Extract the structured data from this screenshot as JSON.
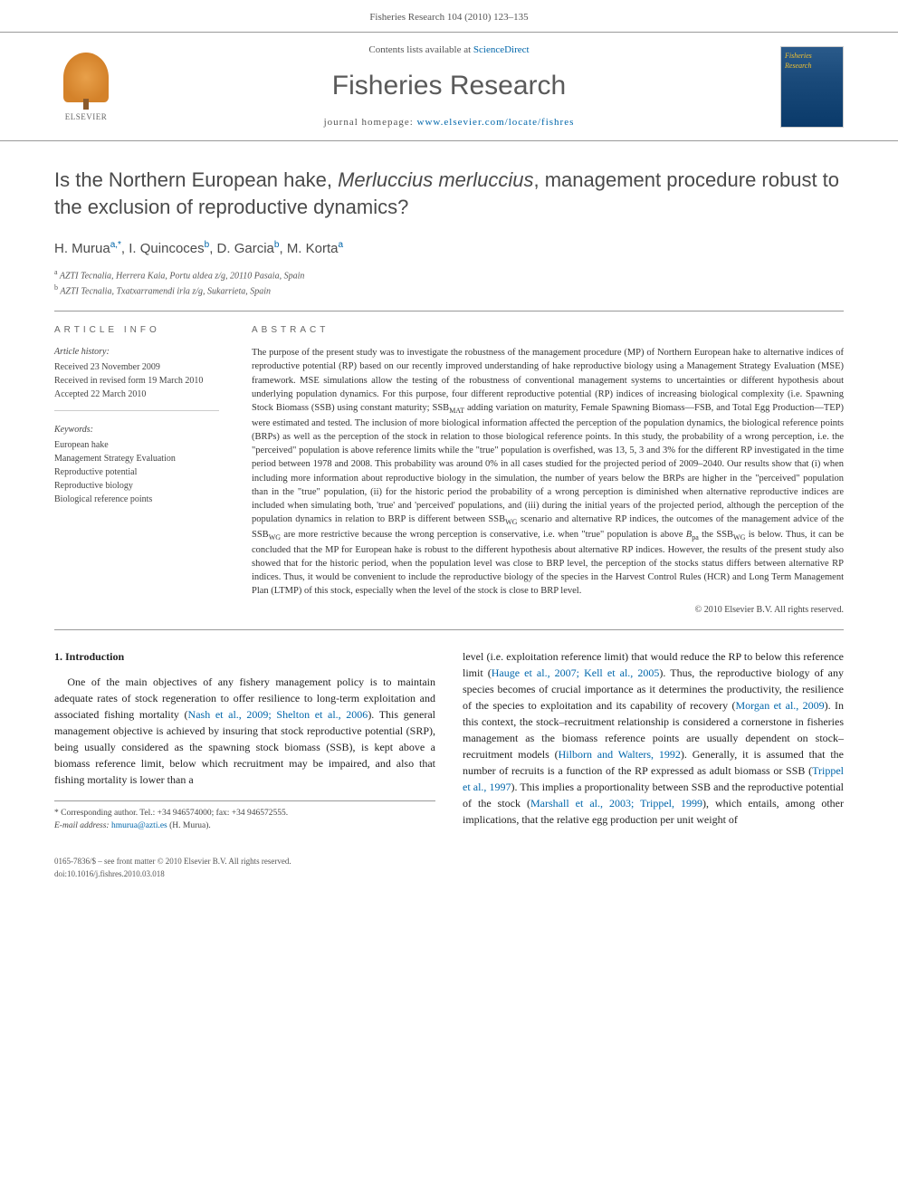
{
  "header": {
    "citation": "Fisheries Research 104 (2010) 123–135"
  },
  "masthead": {
    "publisher_label": "ELSEVIER",
    "contents_prefix": "Contents lists available at ",
    "contents_link": "ScienceDirect",
    "journal_name": "Fisheries Research",
    "homepage_prefix": "journal homepage: ",
    "homepage_url": "www.elsevier.com/locate/fishres",
    "cover_title": "Fisheries Research"
  },
  "title": {
    "prefix": "Is the Northern European hake, ",
    "species": "Merluccius merluccius",
    "suffix": ", management procedure robust to the exclusion of reproductive dynamics?"
  },
  "authors": [
    {
      "name": "H. Murua",
      "aff": "a,*"
    },
    {
      "name": "I. Quincoces",
      "aff": "b"
    },
    {
      "name": "D. Garcia",
      "aff": "b"
    },
    {
      "name": "M. Korta",
      "aff": "a"
    }
  ],
  "affiliations": [
    {
      "mark": "a",
      "text": "AZTI Tecnalia, Herrera Kaia, Portu aldea z/g, 20110 Pasaia, Spain"
    },
    {
      "mark": "b",
      "text": "AZTI Tecnalia, Txatxarramendi irla z/g, Sukarrieta, Spain"
    }
  ],
  "article_info": {
    "heading": "ARTICLE INFO",
    "history_label": "Article history:",
    "history": [
      "Received 23 November 2009",
      "Received in revised form 19 March 2010",
      "Accepted 22 March 2010"
    ],
    "keywords_label": "Keywords:",
    "keywords": [
      "European hake",
      "Management Strategy Evaluation",
      "Reproductive potential",
      "Reproductive biology",
      "Biological reference points"
    ]
  },
  "abstract": {
    "heading": "ABSTRACT",
    "text": "The purpose of the present study was to investigate the robustness of the management procedure (MP) of Northern European hake to alternative indices of reproductive potential (RP) based on our recently improved understanding of hake reproductive biology using a Management Strategy Evaluation (MSE) framework. MSE simulations allow the testing of the robustness of conventional management systems to uncertainties or different hypothesis about underlying population dynamics. For this purpose, four different reproductive potential (RP) indices of increasing biological complexity (i.e. Spawning Stock Biomass (SSB) using constant maturity; SSBMAT adding variation on maturity, Female Spawning Biomass—FSB, and Total Egg Production—TEP) were estimated and tested. The inclusion of more biological information affected the perception of the population dynamics, the biological reference points (BRPs) as well as the perception of the stock in relation to those biological reference points. In this study, the probability of a wrong perception, i.e. the \"perceived\" population is above reference limits while the \"true\" population is overfished, was 13, 5, 3 and 3% for the different RP investigated in the time period between 1978 and 2008. This probability was around 0% in all cases studied for the projected period of 2009–2040. Our results show that (i) when including more information about reproductive biology in the simulation, the number of years below the BRPs are higher in the \"perceived\" population than in the \"true\" population, (ii) for the historic period the probability of a wrong perception is diminished when alternative reproductive indices are included when simulating both, 'true' and 'perceived' populations, and (iii) during the initial years of the projected period, although the perception of the population dynamics in relation to BRP is different between SSBWG scenario and alternative RP indices, the outcomes of the management advice of the SSBWG are more restrictive because the wrong perception is conservative, i.e. when \"true\" population is above Bpa the SSBWG is below. Thus, it can be concluded that the MP for European hake is robust to the different hypothesis about alternative RP indices. However, the results of the present study also showed that for the historic period, when the population level was close to BRP level, the perception of the stocks status differs between alternative RP indices. Thus, it would be convenient to include the reproductive biology of the species in the Harvest Control Rules (HCR) and Long Term Management Plan (LTMP) of this stock, especially when the level of the stock is close to BRP level.",
    "copyright": "© 2010 Elsevier B.V. All rights reserved."
  },
  "body": {
    "section_heading": "1. Introduction",
    "col1": "One of the main objectives of any fishery management policy is to maintain adequate rates of stock regeneration to offer resilience to long-term exploitation and associated fishing mortality (Nash et al., 2009; Shelton et al., 2006). This general management objective is achieved by insuring that stock reproductive potential (SRP), being usually considered as the spawning stock biomass (SSB), is kept above a biomass reference limit, below which recruitment may be impaired, and also that fishing mortality is lower than a",
    "col2": "level (i.e. exploitation reference limit) that would reduce the RP to below this reference limit (Hauge et al., 2007; Kell et al., 2005). Thus, the reproductive biology of any species becomes of crucial importance as it determines the productivity, the resilience of the species to exploitation and its capability of recovery (Morgan et al., 2009). In this context, the stock–recruitment relationship is considered a cornerstone in fisheries management as the biomass reference points are usually dependent on stock–recruitment models (Hilborn and Walters, 1992). Generally, it is assumed that the number of recruits is a function of the RP expressed as adult biomass or SSB (Trippel et al., 1997). This implies a proportionality between SSB and the reproductive potential of the stock (Marshall et al., 2003; Trippel, 1999), which entails, among other implications, that the relative egg production per unit weight of"
  },
  "footnotes": {
    "corresponding": "* Corresponding author. Tel.: +34 946574000; fax: +34 946572555.",
    "email_label": "E-mail address:",
    "email": "hmurua@azti.es",
    "email_person": "(H. Murua)."
  },
  "footer": {
    "line1": "0165-7836/$ – see front matter © 2010 Elsevier B.V. All rights reserved.",
    "line2": "doi:10.1016/j.fishres.2010.03.018"
  },
  "colors": {
    "link": "#0066aa",
    "text": "#333333",
    "heading": "#4a4a4a",
    "rule": "#999999"
  }
}
